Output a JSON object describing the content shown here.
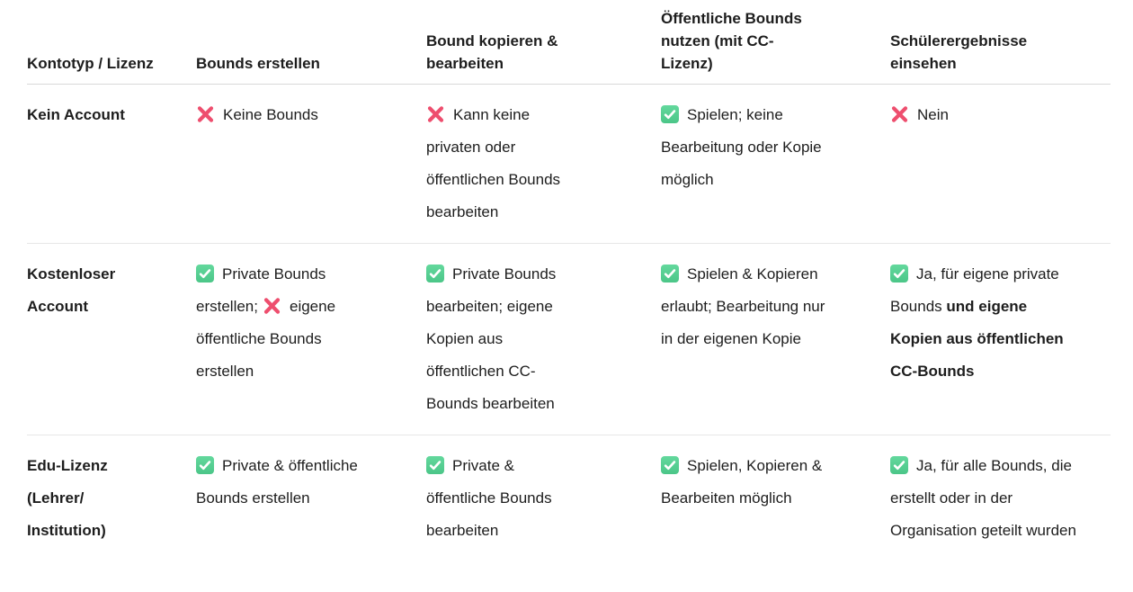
{
  "colors": {
    "check_green": "#4bc688",
    "check_green_light": "#63d89d",
    "cross_pink": "#ee4e6e",
    "text": "#1d1d1d",
    "header_border": "#d8d8d8",
    "row_border": "#e7e7e7",
    "background": "#ffffff"
  },
  "table": {
    "columns": [
      "Kontotyp / Lizenz",
      "Bounds erstellen",
      "Bound kopieren & bearbeiten",
      "Öffentliche Bounds nutzen (mit CC-Lizenz)",
      "Schülerergebnisse einsehen"
    ],
    "rows": [
      {
        "label": "Kein Account",
        "cells": [
          [
            {
              "icon": "cross"
            },
            {
              "text": "Keine Bounds"
            }
          ],
          [
            {
              "icon": "cross"
            },
            {
              "text": "Kann keine privaten oder öffentlichen Bounds bearbeiten"
            }
          ],
          [
            {
              "icon": "check"
            },
            {
              "text": "Spielen; keine Bearbeitung oder Kopie möglich"
            }
          ],
          [
            {
              "icon": "cross"
            },
            {
              "text": "Nein"
            }
          ]
        ]
      },
      {
        "label": "Kostenloser Account",
        "cells": [
          [
            {
              "icon": "check"
            },
            {
              "text": "Private Bounds erstellen;"
            },
            {
              "icon": "cross"
            },
            {
              "text": "eigene öffentliche Bounds erstellen"
            }
          ],
          [
            {
              "icon": "check"
            },
            {
              "text": "Private Bounds bearbeiten; eigene Kopien aus öffentlichen CC-Bounds bearbeiten"
            }
          ],
          [
            {
              "icon": "check"
            },
            {
              "text": "Spielen & Kopieren erlaubt; Bearbeitung nur in der eigenen Kopie"
            }
          ],
          [
            {
              "icon": "check"
            },
            {
              "text": "Ja, für eigene private Bounds "
            },
            {
              "text": "und eigene Kopien aus öffentlichen CC-Bounds",
              "bold": true
            }
          ]
        ]
      },
      {
        "label": "Edu-Lizenz (Lehrer/ Institution)",
        "cells": [
          [
            {
              "icon": "check"
            },
            {
              "text": "Private & öffentliche Bounds erstellen"
            }
          ],
          [
            {
              "icon": "check"
            },
            {
              "text": "Private & öffentliche Bounds bearbeiten"
            }
          ],
          [
            {
              "icon": "check"
            },
            {
              "text": "Spielen, Kopieren & Bearbeiten möglich"
            }
          ],
          [
            {
              "icon": "check"
            },
            {
              "text": "Ja, für alle Bounds, die erstellt oder in der Organisation geteilt wurden"
            }
          ]
        ]
      }
    ]
  }
}
